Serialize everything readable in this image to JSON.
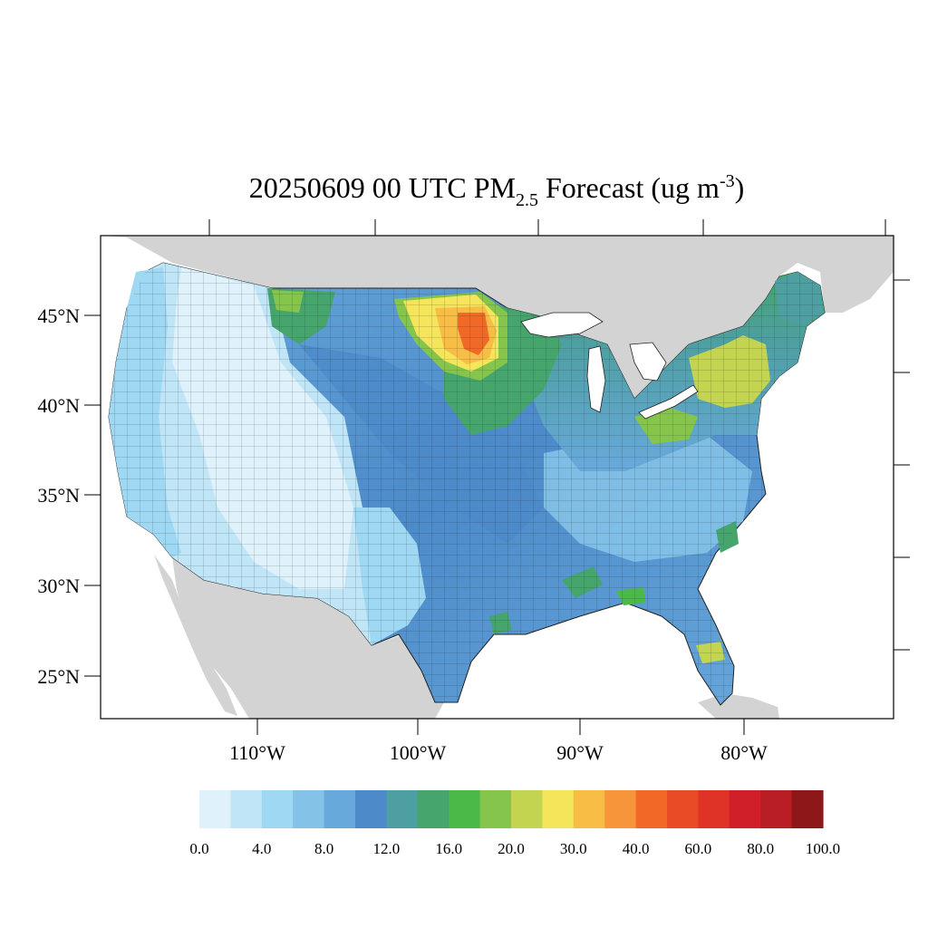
{
  "title": {
    "prefix": "20250609 00 UTC PM",
    "subscript": "2.5",
    "middle": " Forecast (ug m",
    "superscript": "-3",
    "suffix": ")"
  },
  "map": {
    "lon_ticks": [
      "110°W",
      "100°W",
      "90°W",
      "80°W"
    ],
    "lat_ticks": [
      "45°N",
      "40°N",
      "35°N",
      "30°N",
      "25°N"
    ]
  },
  "colors": {
    "land_outside": "#d3d3d3",
    "water": "#ffffff",
    "frame": "#000000"
  },
  "colorbar": {
    "colors": [
      "#dff1fa",
      "#bfe5f7",
      "#9fd8f3",
      "#84c2e8",
      "#68a9dc",
      "#4c8ac9",
      "#4d9fa1",
      "#45a56d",
      "#4bb947",
      "#86c54b",
      "#c3d550",
      "#f4e55a",
      "#f7bd45",
      "#f6953a",
      "#f16827",
      "#e94b27",
      "#df3327",
      "#d11f2a",
      "#b81e23",
      "#8e1819"
    ],
    "labels": [
      "0.0",
      "4.0",
      "8.0",
      "12.0",
      "16.0",
      "20.0",
      "30.0",
      "40.0",
      "60.0",
      "80.0",
      "100.0"
    ]
  }
}
